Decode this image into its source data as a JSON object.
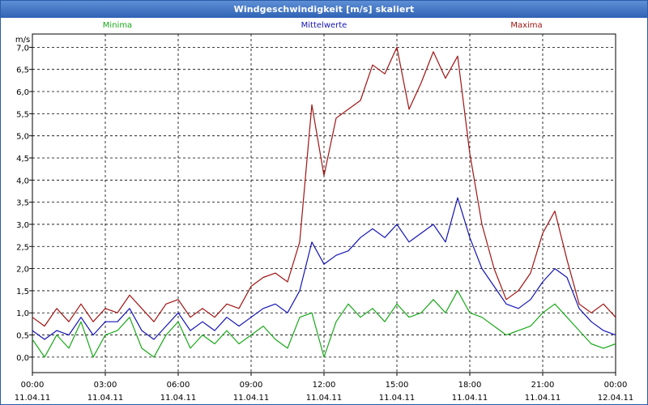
{
  "window": {
    "title": "Windgeschwindigkeit [m/s] skaliert"
  },
  "chart_data": {
    "type": "line",
    "ylabel": "m/s",
    "ylim": [
      -0.35,
      7.3
    ],
    "yticks": [
      "0,0",
      "0,5",
      "1,0",
      "1,5",
      "2,0",
      "2,5",
      "3,0",
      "3,5",
      "4,0",
      "4,5",
      "5,0",
      "5,5",
      "6,0",
      "6,5",
      "7,0"
    ],
    "xlim": [
      0,
      24
    ],
    "xticks": [
      {
        "time": "00:00",
        "date": "11.04.11"
      },
      {
        "time": "03:00",
        "date": "11.04.11"
      },
      {
        "time": "06:00",
        "date": "11.04.11"
      },
      {
        "time": "09:00",
        "date": "11.04.11"
      },
      {
        "time": "12:00",
        "date": "11.04.11"
      },
      {
        "time": "15:00",
        "date": "11.04.11"
      },
      {
        "time": "18:00",
        "date": "11.04.11"
      },
      {
        "time": "21:00",
        "date": "11.04.11"
      },
      {
        "time": "00:00",
        "date": "12.04.11"
      }
    ],
    "grid": true,
    "legend_position": "top",
    "series": [
      {
        "name": "Minima",
        "color": "#1aa81a",
        "x": [
          0,
          0.5,
          1,
          1.5,
          2,
          2.5,
          3,
          3.5,
          4,
          4.5,
          5,
          5.5,
          6,
          6.5,
          7,
          7.5,
          8,
          8.5,
          9,
          9.5,
          10,
          10.5,
          11,
          11.5,
          12,
          12.5,
          13,
          13.5,
          14,
          14.5,
          15,
          15.5,
          16,
          16.5,
          17,
          17.5,
          18,
          18.5,
          19,
          19.5,
          20,
          20.5,
          21,
          21.5,
          22,
          22.5,
          23,
          23.5,
          24
        ],
        "values": [
          0.4,
          0,
          0.5,
          0.2,
          0.8,
          0,
          0.5,
          0.6,
          0.9,
          0.2,
          0,
          0.5,
          0.8,
          0.2,
          0.5,
          0.3,
          0.6,
          0.3,
          0.5,
          0.7,
          0.4,
          0.2,
          0.9,
          1,
          0,
          0.8,
          1.2,
          0.9,
          1.1,
          0.8,
          1.2,
          0.9,
          1,
          1.3,
          1,
          1.5,
          1,
          0.9,
          0.7,
          0.5,
          0.6,
          0.7,
          1,
          1.2,
          0.9,
          0.6,
          0.3,
          0.2,
          0.3
        ]
      },
      {
        "name": "Mittelwerte",
        "color": "#1414b4",
        "x": [
          0,
          0.5,
          1,
          1.5,
          2,
          2.5,
          3,
          3.5,
          4,
          4.5,
          5,
          5.5,
          6,
          6.5,
          7,
          7.5,
          8,
          8.5,
          9,
          9.5,
          10,
          10.5,
          11,
          11.5,
          12,
          12.5,
          13,
          13.5,
          14,
          14.5,
          15,
          15.5,
          16,
          16.5,
          17,
          17.5,
          18,
          18.5,
          19,
          19.5,
          20,
          20.5,
          21,
          21.5,
          22,
          22.5,
          23,
          23.5,
          24
        ],
        "values": [
          0.6,
          0.4,
          0.6,
          0.5,
          0.9,
          0.5,
          0.8,
          0.8,
          1.1,
          0.6,
          0.4,
          0.7,
          1,
          0.6,
          0.8,
          0.6,
          0.9,
          0.7,
          0.9,
          1.1,
          1.2,
          1,
          1.5,
          2.6,
          2.1,
          2.3,
          2.4,
          2.7,
          2.9,
          2.7,
          3,
          2.6,
          2.8,
          3,
          2.6,
          3.6,
          2.7,
          2,
          1.6,
          1.2,
          1.1,
          1.3,
          1.7,
          2,
          1.8,
          1.1,
          0.8,
          0.6,
          0.5
        ]
      },
      {
        "name": "Maxima",
        "color": "#a01414",
        "x": [
          0,
          0.5,
          1,
          1.5,
          2,
          2.5,
          3,
          3.5,
          4,
          4.5,
          5,
          5.5,
          6,
          6.5,
          7,
          7.5,
          8,
          8.5,
          9,
          9.5,
          10,
          10.5,
          11,
          11.5,
          12,
          12.5,
          13,
          13.5,
          14,
          14.5,
          15,
          15.5,
          16,
          16.5,
          17,
          17.5,
          18,
          18.5,
          19,
          19.5,
          20,
          20.5,
          21,
          21.5,
          22,
          22.5,
          23,
          23.5,
          24
        ],
        "values": [
          0.9,
          0.7,
          1.1,
          0.8,
          1.2,
          0.8,
          1.1,
          1,
          1.4,
          1.1,
          0.8,
          1.2,
          1.3,
          0.9,
          1.1,
          0.9,
          1.2,
          1.1,
          1.6,
          1.8,
          1.9,
          1.7,
          2.6,
          5.7,
          4.1,
          5.4,
          5.6,
          5.8,
          6.6,
          6.4,
          7,
          5.6,
          6.2,
          6.9,
          6.3,
          6.8,
          4.6,
          3,
          2,
          1.3,
          1.5,
          1.9,
          2.8,
          3.3,
          2.2,
          1.2,
          1,
          1.2,
          0.9
        ]
      }
    ]
  }
}
